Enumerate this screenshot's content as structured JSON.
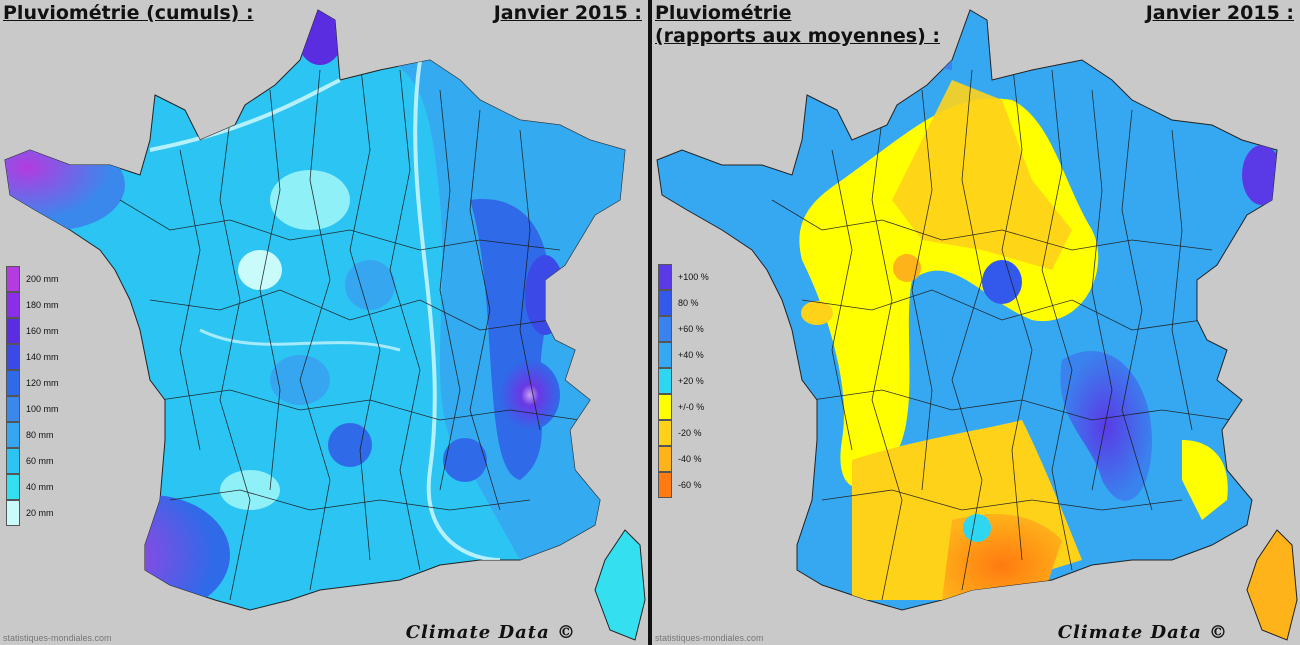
{
  "left_panel": {
    "title": "Pluviométrie (cumuls) :",
    "date": "Janvier 2015 :",
    "watermark": "Climate Data ©",
    "source": "statistiques-mondiales.com",
    "legend": [
      {
        "label": "200 mm",
        "color": "#b33be0"
      },
      {
        "label": "180 mm",
        "color": "#8a2ee8"
      },
      {
        "label": "160 mm",
        "color": "#5a2ee0"
      },
      {
        "label": "140 mm",
        "color": "#3b4ae6"
      },
      {
        "label": "120 mm",
        "color": "#2f6ae8"
      },
      {
        "label": "100 mm",
        "color": "#3a88ec"
      },
      {
        "label": "80 mm",
        "color": "#36a6f0"
      },
      {
        "label": "60 mm",
        "color": "#2cc4f2"
      },
      {
        "label": "40 mm",
        "color": "#34dff0"
      },
      {
        "label": "20 mm",
        "color": "#c9fbfb"
      }
    ]
  },
  "right_panel": {
    "title": "Pluviométrie\n(rapports aux moyennes) :",
    "date": "Janvier 2015 :",
    "watermark": "Climate Data ©",
    "source": "statistiques-mondiales.com",
    "legend": [
      {
        "label": "+100 %",
        "color": "#5a3ae6"
      },
      {
        "label": "80 %",
        "color": "#3359ec"
      },
      {
        "label": "+60 %",
        "color": "#3a82ee"
      },
      {
        "label": "+40 %",
        "color": "#36a8f2"
      },
      {
        "label": "+20 %",
        "color": "#2fd6f2"
      },
      {
        "label": "+/-0 %",
        "color": "#ffff00"
      },
      {
        "label": "-20 %",
        "color": "#ffd21a"
      },
      {
        "label": "-40 %",
        "color": "#ffb31a"
      },
      {
        "label": "-60 %",
        "color": "#ff7a10"
      }
    ]
  }
}
